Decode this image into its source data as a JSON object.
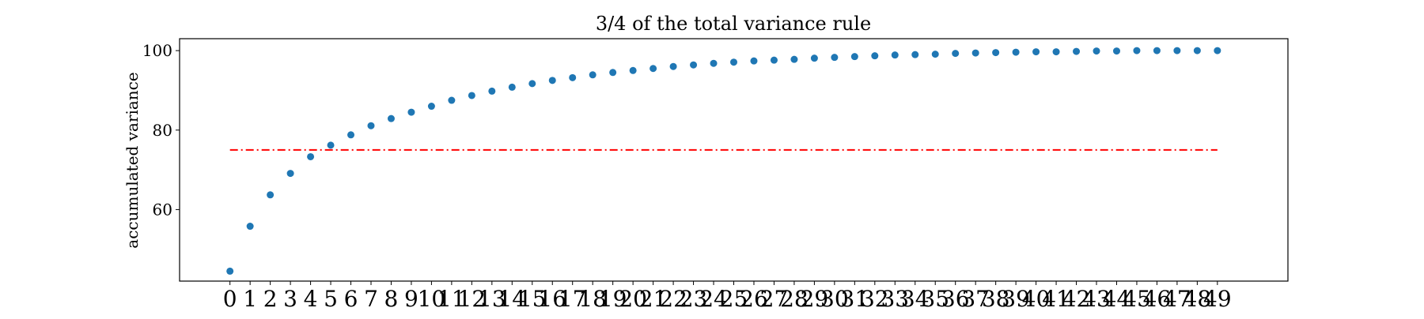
{
  "chart_data": {
    "type": "scatter",
    "title": "3/4 of the total variance rule",
    "xlabel": "",
    "ylabel": "accumulated variance",
    "x": [
      0,
      1,
      2,
      3,
      4,
      5,
      6,
      7,
      8,
      9,
      10,
      11,
      12,
      13,
      14,
      15,
      16,
      17,
      18,
      19,
      20,
      21,
      22,
      23,
      24,
      25,
      26,
      27,
      28,
      29,
      30,
      31,
      32,
      33,
      34,
      35,
      36,
      37,
      38,
      39,
      40,
      41,
      42,
      43,
      44,
      45,
      46,
      47,
      48,
      49
    ],
    "series": [
      {
        "name": "",
        "color": "#1f77b4",
        "values": [
          44.5,
          55.8,
          63.7,
          69.1,
          73.3,
          76.2,
          78.8,
          81.1,
          82.9,
          84.5,
          86.0,
          87.5,
          88.7,
          89.8,
          90.8,
          91.7,
          92.5,
          93.2,
          93.9,
          94.5,
          95.0,
          95.5,
          96.0,
          96.4,
          96.8,
          97.1,
          97.4,
          97.6,
          97.8,
          98.1,
          98.3,
          98.5,
          98.7,
          98.9,
          99.0,
          99.1,
          99.3,
          99.4,
          99.5,
          99.6,
          99.7,
          99.7,
          99.8,
          99.9,
          99.9,
          100.0,
          100.0,
          100.0,
          100.0,
          100.0
        ]
      }
    ],
    "reference_line": {
      "y": 75,
      "x_range": [
        0,
        49
      ],
      "color": "#ff0000",
      "style": "dash-dot"
    },
    "xticks": [
      0,
      1,
      2,
      3,
      4,
      5,
      6,
      7,
      8,
      9,
      10,
      11,
      12,
      13,
      14,
      15,
      16,
      17,
      18,
      19,
      20,
      21,
      22,
      23,
      24,
      25,
      26,
      27,
      28,
      29,
      30,
      31,
      32,
      33,
      34,
      35,
      36,
      37,
      38,
      39,
      40,
      41,
      42,
      43,
      44,
      45,
      46,
      47,
      48,
      49
    ],
    "yticks": [
      60,
      80,
      100
    ],
    "xlim": [
      -2.5,
      52.5
    ],
    "ylim": [
      42,
      103
    ],
    "grid": false,
    "legend": "none"
  }
}
